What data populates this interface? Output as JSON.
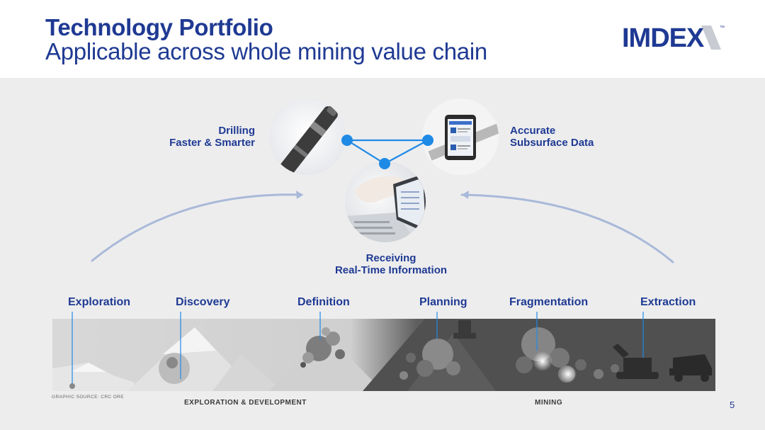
{
  "header": {
    "title": "Technology Portfolio",
    "subtitle": "Applicable across whole mining value chain",
    "logo_text": "IMDEX",
    "logo_tm": "™"
  },
  "technologies": [
    {
      "line1": "Drilling",
      "line2": "Faster & Smarter"
    },
    {
      "line1": "Accurate",
      "line2": "Subsurface Data"
    },
    {
      "line1": "Receiving",
      "line2": "Real-Time Information"
    }
  ],
  "stages": [
    "Exploration",
    "Discovery",
    "Definition",
    "Planning",
    "Fragmentation",
    "Extraction"
  ],
  "footer": {
    "graphic_source": "GRAPHIC SOURCE: CRC ORE",
    "phase_left": "EXPLORATION & DEVELOPMENT",
    "phase_right": "MINING",
    "page_number": "5"
  },
  "colors": {
    "brand_navy": "#1f3a93",
    "node_blue": "#1f8ae6",
    "arrow_blue": "#a9b9d8"
  }
}
